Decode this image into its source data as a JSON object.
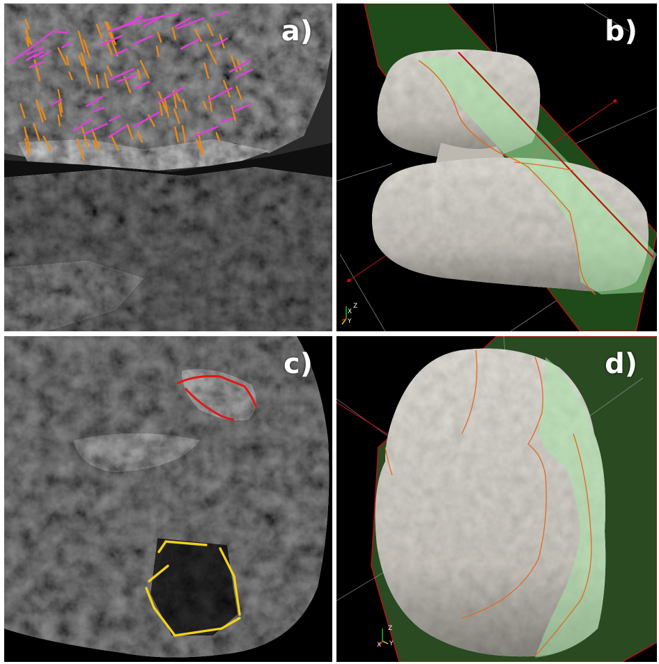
{
  "panels": {
    "a": {
      "label": "a)"
    },
    "b": {
      "label": "b)",
      "axes": {
        "x": "X",
        "y": "Y",
        "z": "Z"
      }
    },
    "c": {
      "label": "c)"
    },
    "d": {
      "label": "d)",
      "axes": {
        "x": "X",
        "y": "Y",
        "z": "Z"
      }
    }
  },
  "colors": {
    "panel_background": "#000000",
    "divider": "#ffffff",
    "fracture_orange": "#e88a1a",
    "fracture_magenta": "#e040d8",
    "outline_red": "#e01818",
    "outline_yellow": "#f2d21b",
    "model_surface": "#dcd9d2",
    "cut_plane": "#1f4a1a",
    "section_green": "#a6e8a6",
    "contour_orange": "#e06a20",
    "axis_red": "#c01010"
  }
}
